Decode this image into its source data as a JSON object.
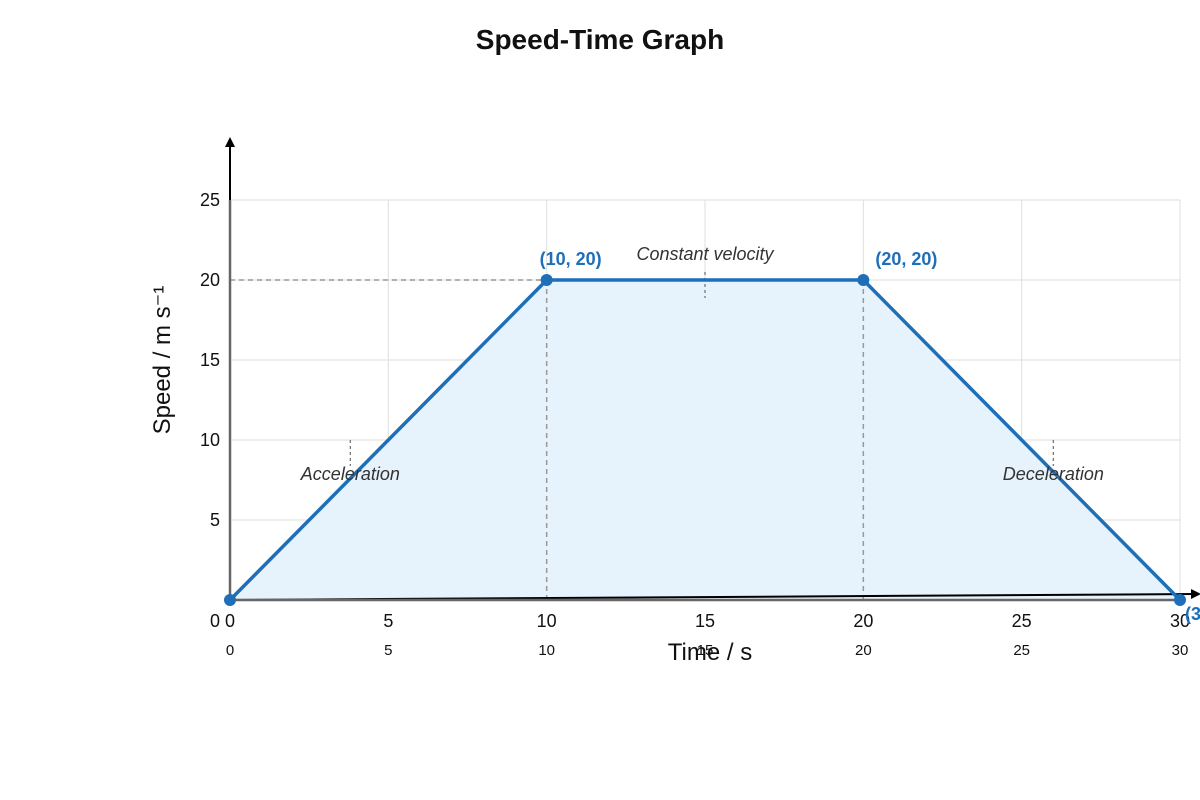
{
  "chart_data": {
    "type": "area",
    "title": "Speed-Time Graph",
    "xlabel": "Time / s",
    "ylabel": "Speed / m s⁻¹",
    "xlim": [
      0,
      30
    ],
    "ylim": [
      0,
      25
    ],
    "grid": true,
    "x_ticks": [
      0,
      5,
      10,
      15,
      20,
      25,
      30
    ],
    "x_tick_labels": [
      "0",
      "5",
      "10",
      "15",
      "20",
      "25",
      "30"
    ],
    "x_tick_labels_secondary": [
      "0",
      "5",
      "10",
      "15",
      "20",
      "25",
      "30"
    ],
    "y_ticks": [
      5,
      10,
      15,
      20,
      25
    ],
    "y_tick_labels": [
      "5",
      "10",
      "15",
      "20",
      "25"
    ],
    "origin_label": "0",
    "series": [
      {
        "x": [
          0,
          10,
          20,
          30
        ],
        "y": [
          0,
          20,
          20,
          0
        ]
      }
    ],
    "point_labels": [
      {
        "x": 10,
        "y": 20,
        "text": "(10, 20)"
      },
      {
        "x": 20,
        "y": 20,
        "text": "(20, 20)"
      },
      {
        "x": 30,
        "y": 0,
        "text": "(3"
      }
    ],
    "annotations": [
      {
        "x": 3.8,
        "y": 10,
        "text": "Acceleration"
      },
      {
        "x": 15,
        "y": 20.5,
        "text": "Constant velocity"
      },
      {
        "x": 26,
        "y": 10,
        "text": "Deceleration"
      }
    ],
    "colors": {
      "line": "#1f6fb8",
      "fill": "#e6f2fc",
      "grid": "#e4e4e4",
      "axis": "#666666",
      "guide": "#999999",
      "annotation": "#333333"
    }
  }
}
